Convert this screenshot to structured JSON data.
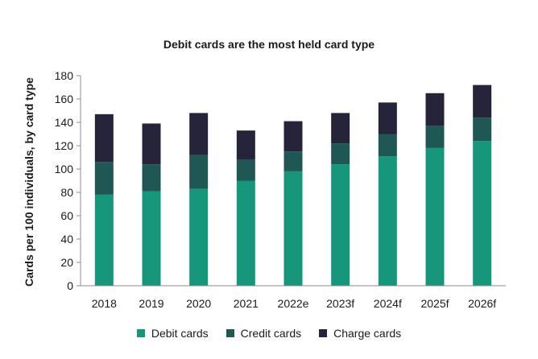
{
  "chart_data": {
    "type": "bar",
    "stacked": true,
    "title": "Debit cards are the most held card type",
    "xlabel": "",
    "ylabel": "Cards per 100 individuals, by card type",
    "ylim": [
      0,
      180
    ],
    "yticks": [
      0,
      20,
      40,
      60,
      80,
      100,
      120,
      140,
      160,
      180
    ],
    "grid": false,
    "legend_position": "bottom",
    "categories": [
      "2018",
      "2019",
      "2020",
      "2021",
      "2022e",
      "2023f",
      "2024f",
      "2025f",
      "2026f"
    ],
    "series": [
      {
        "name": "Debit cards",
        "color": "#16977b",
        "values": [
          78,
          81,
          83,
          90,
          98,
          104,
          111,
          118,
          124
        ]
      },
      {
        "name": "Credit cards",
        "color": "#1e5754",
        "values": [
          28,
          23,
          29,
          18,
          17,
          18,
          19,
          19,
          20
        ]
      },
      {
        "name": "Charge cards",
        "color": "#26243a",
        "values": [
          41,
          35,
          36,
          25,
          26,
          26,
          27,
          28,
          28
        ]
      }
    ]
  }
}
